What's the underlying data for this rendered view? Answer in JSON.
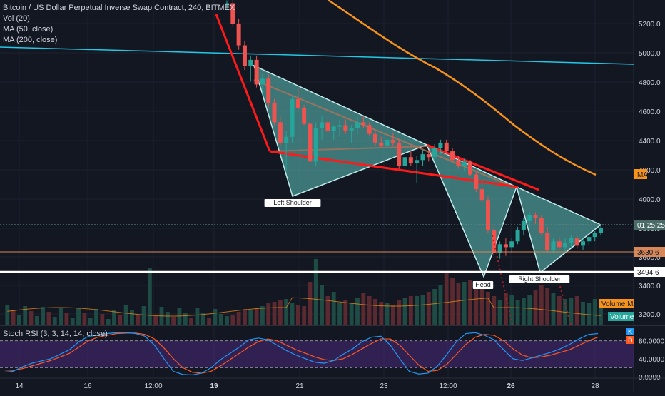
{
  "legend": {
    "title": "Bitcoin / US Dollar Perpetual Inverse Swap Contract, 240, BITMEX",
    "vol": "Vol (20)",
    "ma50": "MA (50, close)",
    "ma200": "MA (200, close)"
  },
  "stoch_label": "Stoch RSI (3, 3, 14, 14, close)",
  "colors": {
    "background": "#131722",
    "bull": "#26a69a",
    "bear": "#ef5350",
    "ma50": "#f7931a",
    "ma200": "#22c8e6",
    "pattern_fill": "#5fc4bd",
    "pattern_edge": "#c0ecec",
    "red_line": "#ff1a1a",
    "white_line": "#ffffff",
    "stoch_k": "#2196f3",
    "stoch_d": "#ff5722",
    "stoch_band": "#4a2a7a"
  },
  "chart_data": [
    {
      "type": "candlestick",
      "ylim": [
        3150,
        5350
      ],
      "price_ticks": [
        "5200.0",
        "5000.0",
        "4800.0",
        "4600.0",
        "4400.0",
        "4200.0",
        "4000.0",
        "3800.0",
        "3600.0",
        "3400.0",
        "3200.0"
      ],
      "x_ticks": [
        "14",
        "16",
        "12:00",
        "19",
        "21",
        "23",
        "12:00",
        "26",
        "28"
      ],
      "candles": [
        [
          5330,
          5360,
          5300,
          5340
        ],
        [
          5340,
          5380,
          5180,
          5200
        ],
        [
          5200,
          5230,
          5020,
          5050
        ],
        [
          5050,
          5080,
          4880,
          4910
        ],
        [
          4910,
          4980,
          4800,
          4950
        ],
        [
          4950,
          4980,
          4760,
          4780
        ],
        [
          4780,
          4850,
          4700,
          4820
        ],
        [
          4820,
          4850,
          4620,
          4650
        ],
        [
          4650,
          4680,
          4500,
          4520
        ],
        [
          4520,
          4560,
          4360,
          4380
        ],
        [
          4380,
          4460,
          4180,
          4420
        ],
        [
          4420,
          4700,
          4380,
          4680
        ],
        [
          4680,
          4760,
          4600,
          4620
        ],
        [
          4620,
          4640,
          4500,
          4510
        ],
        [
          4510,
          4560,
          4120,
          4250
        ],
        [
          4250,
          4520,
          4220,
          4480
        ],
        [
          4480,
          4560,
          4400,
          4520
        ],
        [
          4520,
          4560,
          4440,
          4460
        ],
        [
          4460,
          4500,
          4400,
          4490
        ],
        [
          4490,
          4540,
          4420,
          4500
        ],
        [
          4500,
          4540,
          4440,
          4460
        ],
        [
          4460,
          4500,
          4380,
          4480
        ],
        [
          4480,
          4560,
          4440,
          4520
        ],
        [
          4520,
          4560,
          4480,
          4500
        ],
        [
          4500,
          4520,
          4430,
          4440
        ],
        [
          4440,
          4460,
          4360,
          4380
        ],
        [
          4380,
          4420,
          4340,
          4360
        ],
        [
          4360,
          4420,
          4330,
          4400
        ],
        [
          4400,
          4450,
          4360,
          4380
        ],
        [
          4380,
          4400,
          4200,
          4220
        ],
        [
          4220,
          4300,
          4180,
          4280
        ],
        [
          4280,
          4320,
          4220,
          4240
        ],
        [
          4240,
          4290,
          4100,
          4260
        ],
        [
          4260,
          4330,
          4220,
          4300
        ],
        [
          4300,
          4330,
          4250,
          4280
        ],
        [
          4280,
          4370,
          4260,
          4340
        ],
        [
          4340,
          4400,
          4300,
          4380
        ],
        [
          4380,
          4400,
          4300,
          4320
        ],
        [
          4320,
          4340,
          4250,
          4260
        ],
        [
          4260,
          4290,
          4200,
          4220
        ],
        [
          4220,
          4270,
          4180,
          4250
        ],
        [
          4250,
          4260,
          4150,
          4160
        ],
        [
          4160,
          4180,
          4040,
          4060
        ],
        [
          4060,
          4120,
          3960,
          3980
        ],
        [
          3980,
          4010,
          3760,
          3780
        ],
        [
          3780,
          3810,
          3600,
          3620
        ],
        [
          3620,
          3700,
          3580,
          3680
        ],
        [
          3680,
          3720,
          3600,
          3660
        ],
        [
          3660,
          3720,
          3620,
          3700
        ],
        [
          3700,
          3800,
          3680,
          3780
        ],
        [
          3780,
          3860,
          3740,
          3840
        ],
        [
          3840,
          3900,
          3800,
          3880
        ],
        [
          3880,
          3900,
          3820,
          3860
        ],
        [
          3860,
          3880,
          3740,
          3760
        ],
        [
          3760,
          3800,
          3620,
          3640
        ],
        [
          3640,
          3720,
          3620,
          3700
        ],
        [
          3700,
          3730,
          3640,
          3660
        ],
        [
          3660,
          3720,
          3630,
          3690
        ],
        [
          3690,
          3740,
          3660,
          3720
        ],
        [
          3720,
          3740,
          3650,
          3670
        ],
        [
          3670,
          3720,
          3640,
          3700
        ],
        [
          3700,
          3740,
          3670,
          3730
        ],
        [
          3730,
          3770,
          3700,
          3760
        ],
        [
          3760,
          3810,
          3740,
          3790
        ]
      ],
      "ma50": [
        [
          0,
          5380
        ],
        [
          12,
          5280
        ],
        [
          24,
          5100
        ],
        [
          36,
          4900
        ],
        [
          48,
          4650
        ],
        [
          56,
          4400
        ],
        [
          63,
          4150
        ]
      ],
      "ma200": [
        [
          0,
          5040
        ],
        [
          63,
          4920
        ]
      ],
      "horizontal_levels": [
        {
          "label": "3630.6",
          "value": 3630.6,
          "color": "#f7931a"
        },
        {
          "label": "3494.6",
          "value": 3494.6,
          "color": "#ffffff"
        }
      ],
      "price_tag": {
        "label": "01:25:25",
        "value": 3795
      },
      "ma_tag": {
        "label": "MA",
        "value": 4170
      },
      "annotations": [
        "Left Shoulder",
        "Head",
        "Right Shoulder"
      ],
      "pattern_label_values": [
        {
          "text": "Left Shoulder",
          "x": 15,
          "y": 4000
        },
        {
          "text": "Head",
          "x": 44.5,
          "y": 3480
        },
        {
          "text": "Right Shoulder",
          "x": 53.5,
          "y": 3540
        }
      ]
    },
    {
      "type": "bar",
      "name": "Volume",
      "volumes": [
        12,
        14,
        18,
        22,
        20,
        24,
        26,
        30,
        32,
        35,
        36,
        30,
        28,
        26,
        60,
        92,
        55,
        40,
        46,
        30,
        35,
        30,
        38,
        45,
        40,
        36,
        32,
        30,
        28,
        34,
        38,
        40,
        40,
        42,
        46,
        50,
        56,
        72,
        66,
        58,
        60,
        62,
        56,
        52,
        46,
        40,
        34,
        44,
        42,
        34,
        38,
        42,
        48,
        56,
        52,
        44,
        40,
        36,
        38,
        40,
        32,
        30,
        36,
        34
      ],
      "ma_label": "Volume MA",
      "label": "Volume"
    },
    {
      "type": "line",
      "name": "Stoch RSI",
      "ylim": [
        0,
        100
      ],
      "ticks": [
        "80.0000",
        "40.0000",
        "0.0000"
      ],
      "band": [
        20,
        80
      ],
      "k": [
        10,
        12,
        22,
        30,
        35,
        40,
        50,
        60,
        78,
        90,
        92,
        96,
        98,
        98,
        96,
        90,
        70,
        40,
        12,
        5,
        4,
        8,
        20,
        38,
        52,
        66,
        82,
        86,
        82,
        70,
        58,
        48,
        40,
        32,
        30,
        36,
        50,
        62,
        78,
        88,
        90,
        70,
        40,
        12,
        6,
        8,
        24,
        50,
        78,
        96,
        98,
        92,
        82,
        60,
        40,
        36,
        42,
        48,
        54,
        62,
        72,
        84,
        94,
        96
      ],
      "d": [
        15,
        14,
        18,
        24,
        30,
        36,
        44,
        52,
        66,
        80,
        88,
        92,
        96,
        97,
        97,
        94,
        84,
        64,
        40,
        20,
        10,
        8,
        12,
        24,
        38,
        52,
        66,
        78,
        84,
        80,
        70,
        60,
        52,
        44,
        38,
        36,
        40,
        50,
        62,
        74,
        84,
        84,
        70,
        48,
        26,
        12,
        14,
        28,
        50,
        72,
        88,
        94,
        92,
        80,
        62,
        48,
        42,
        44,
        48,
        54,
        60,
        70,
        80,
        88
      ],
      "k_label": "K",
      "d_label": "D"
    }
  ]
}
